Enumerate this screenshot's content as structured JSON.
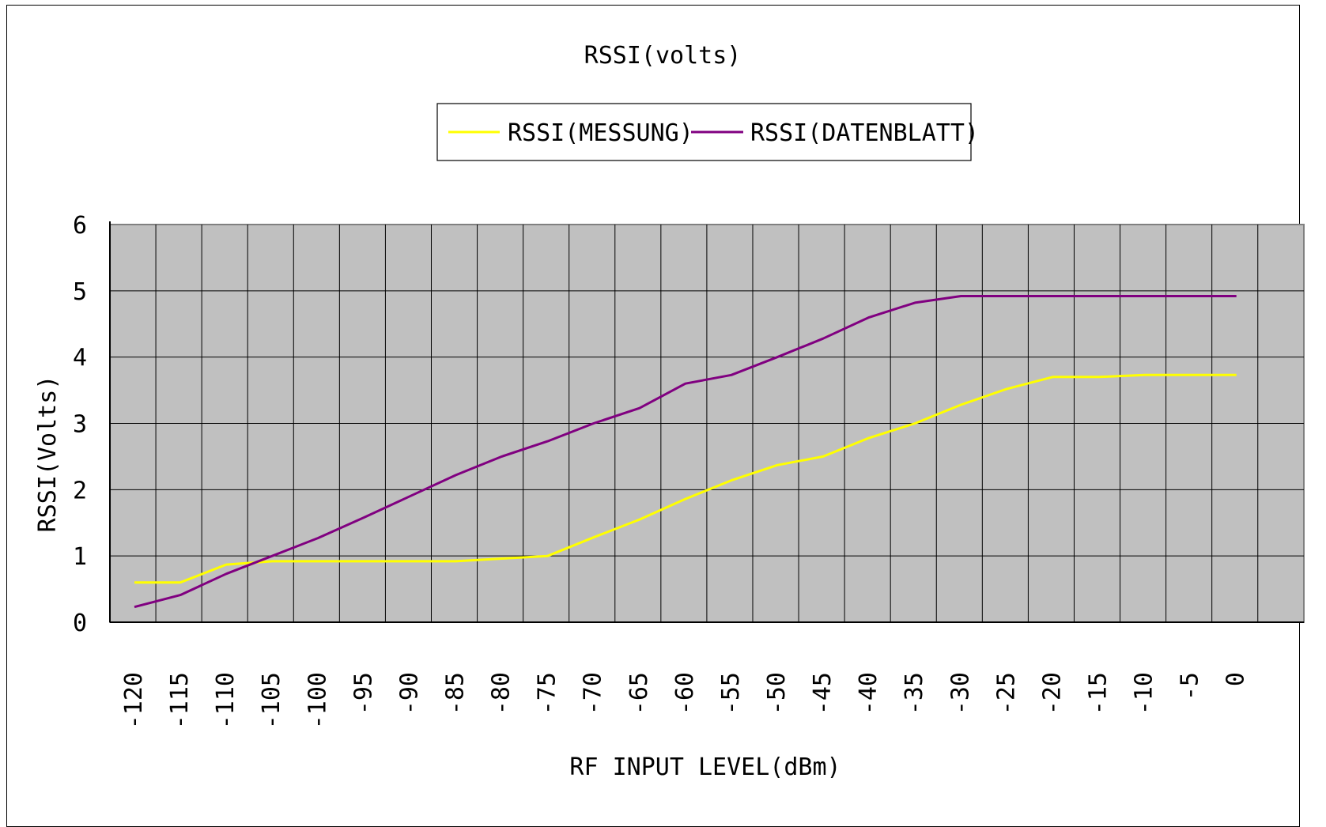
{
  "chart_data": {
    "type": "line",
    "title": "RSSI(volts)",
    "xlabel": "RF INPUT LEVEL(dBm)",
    "ylabel": "RSSI(Volts)",
    "x": [
      -120,
      -115,
      -110,
      -105,
      -100,
      -95,
      -90,
      -85,
      -80,
      -75,
      -70,
      -65,
      -60,
      -55,
      -50,
      -45,
      -40,
      -35,
      -30,
      -25,
      -20,
      -15,
      -10,
      -5,
      0
    ],
    "x_tick_labels": [
      "-120",
      "-115",
      "-110",
      "-105",
      "-100",
      "-95",
      "-90",
      "-85",
      "-80",
      "-75",
      "-70",
      "-65",
      "-60",
      "-55",
      "-50",
      "-45",
      "-40",
      "-35",
      "-30",
      "-25",
      "-20",
      "-15",
      "-10",
      "-5",
      "0"
    ],
    "y_tick_labels": [
      "0",
      "1",
      "2",
      "3",
      "4",
      "5",
      "6"
    ],
    "ylim": [
      0,
      6
    ],
    "grid": true,
    "plot_background": "#c0c0c0",
    "legend_position": "top",
    "series": [
      {
        "name": "RSSI(MESSUNG)",
        "color": "#ffff00",
        "values": [
          0.6,
          0.6,
          0.87,
          0.92,
          0.92,
          0.92,
          0.92,
          0.92,
          0.96,
          1.0,
          1.28,
          1.55,
          1.86,
          2.14,
          2.37,
          2.5,
          2.78,
          3.0,
          3.28,
          3.52,
          3.7,
          3.7,
          3.73,
          3.73,
          3.73
        ]
      },
      {
        "name": "RSSI(DATENBLATT)",
        "color": "#800080",
        "values": [
          0.23,
          0.41,
          0.73,
          1.0,
          1.27,
          1.58,
          1.9,
          2.22,
          2.5,
          2.73,
          3.0,
          3.23,
          3.6,
          3.73,
          4.0,
          4.28,
          4.6,
          4.82,
          4.92,
          4.92,
          4.92,
          4.92,
          4.92,
          4.92,
          4.92
        ]
      }
    ]
  }
}
